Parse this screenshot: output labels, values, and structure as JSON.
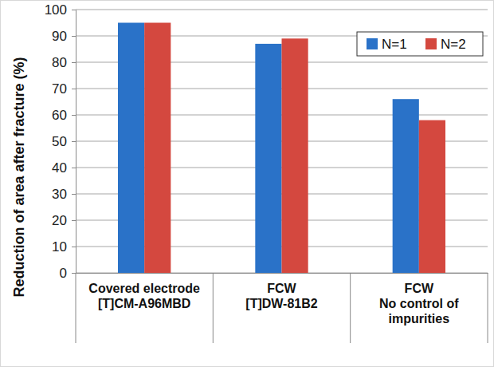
{
  "chart_data": {
    "type": "bar",
    "categories": [
      "Covered electrode\n[T]CM-A96MBD",
      "FCW\n[T]DW-81B2",
      "FCW\nNo control of\nimpurities"
    ],
    "series": [
      {
        "name": "N=1",
        "color": "#2a72c8",
        "values": [
          95,
          87,
          66
        ]
      },
      {
        "name": "N=2",
        "color": "#d4483f",
        "values": [
          95,
          89,
          58
        ]
      }
    ],
    "y_label": "Reduction of area after fracture (%)",
    "ylim": [
      0,
      100
    ],
    "yticks": [
      0,
      10,
      20,
      30,
      40,
      50,
      60,
      70,
      80,
      90,
      100
    ],
    "grid": true,
    "legend": "upper right"
  }
}
